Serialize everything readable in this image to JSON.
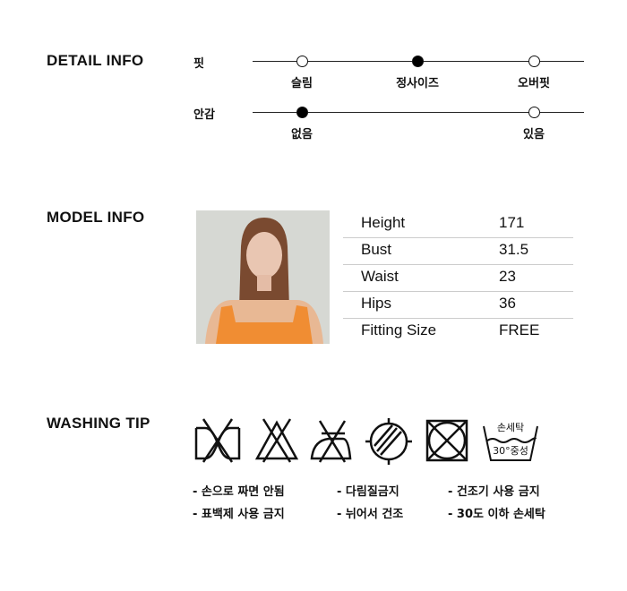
{
  "detail": {
    "title": "DETAIL INFO",
    "rows": [
      {
        "label": "핏",
        "options": [
          "슬림",
          "정사이즈",
          "오버핏"
        ],
        "selected": "정사이즈"
      },
      {
        "label": "안감",
        "options": [
          "없음",
          "있음"
        ],
        "selected": "없음"
      }
    ]
  },
  "model": {
    "title": "MODEL INFO",
    "rows": [
      {
        "k": "Height",
        "v": "171"
      },
      {
        "k": "Bust",
        "v": "31.5"
      },
      {
        "k": "Waist",
        "v": "23"
      },
      {
        "k": "Hips",
        "v": "36"
      },
      {
        "k": "Fitting Size",
        "v": "FREE"
      }
    ]
  },
  "washing": {
    "title": "WASHING TIP",
    "icons": [
      "no-wring-icon",
      "no-bleach-icon",
      "no-iron-icon",
      "line-dry-shade-icon",
      "no-tumble-dry-icon",
      "hand-wash-30-icon"
    ],
    "hand_wash_top": "손세탁",
    "hand_wash_bottom": "30°중성",
    "tips": [
      "- 손으로 짜면 안됨",
      "- 다림질금지",
      "- 건조기 사용 금지",
      "- 표백제 사용 금지",
      "- 뉘어서 건조",
      "- 30도 이하 손세탁"
    ]
  }
}
